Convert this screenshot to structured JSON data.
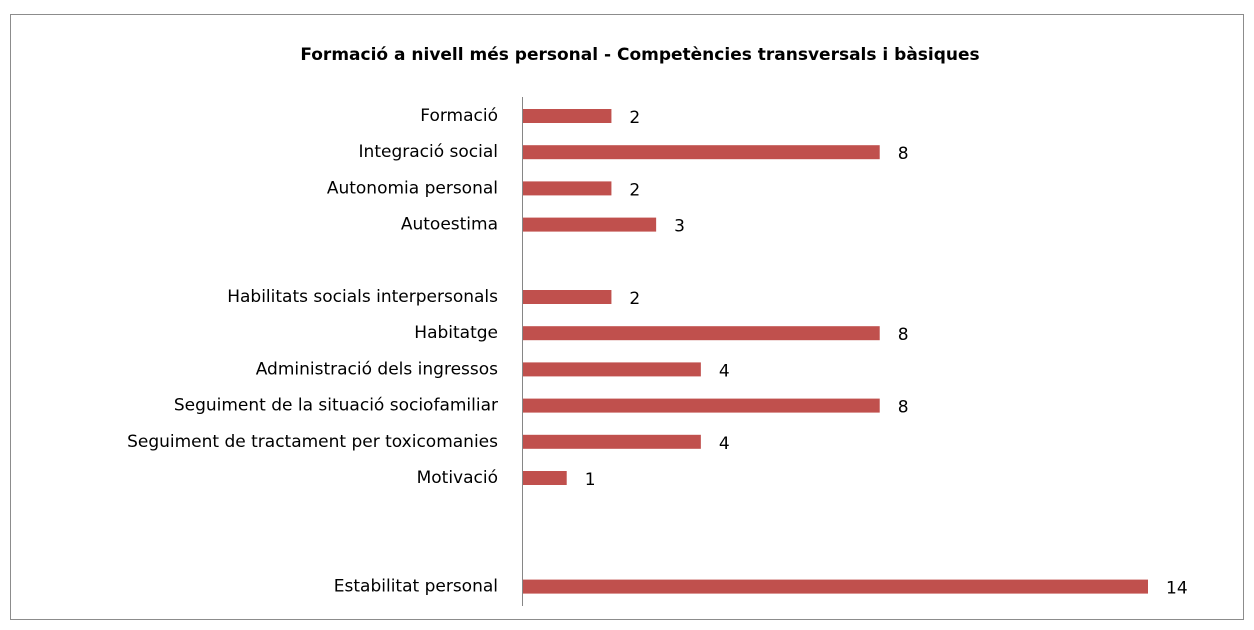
{
  "chart_data": {
    "type": "barh",
    "title": "Formació a nivell més personal - Competències transversals   i bàsiques",
    "categories": [
      "Formació",
      "Integració social",
      "Autonomia personal",
      "Autoestima",
      null,
      "Habilitats socials interpersonals",
      "Habitatge",
      "Administració dels ingressos",
      "Seguiment de la situació sociofamiliar",
      "Seguiment de tractament per toxicomanies",
      "Motivació",
      null,
      null,
      "Estabilitat personal"
    ],
    "values": [
      2,
      8,
      2,
      3,
      null,
      2,
      8,
      4,
      8,
      4,
      1,
      null,
      null,
      14
    ],
    "color": "#c0504d"
  }
}
